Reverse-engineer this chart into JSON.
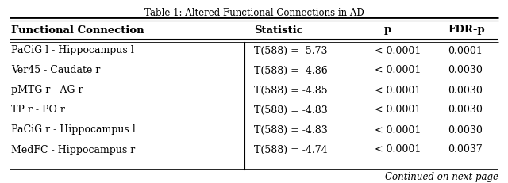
{
  "title": "Table 1: Altered Functional Connections in AD",
  "headers": [
    "Functional Connection",
    "Statistic",
    "p",
    "FDR-p"
  ],
  "rows": [
    [
      "PaCiG l - Hippocampus l",
      "T(588) = -5.73",
      "< 0.0001",
      "0.0001"
    ],
    [
      "Ver45 - Caudate r",
      "T(588) = -4.86",
      "< 0.0001",
      "0.0030"
    ],
    [
      "pMTG r - AG r",
      "T(588) = -4.85",
      "< 0.0001",
      "0.0030"
    ],
    [
      "TP r - PO r",
      "T(588) = -4.83",
      "< 0.0001",
      "0.0030"
    ],
    [
      "PaCiG r - Hippocampus l",
      "T(588) = -4.83",
      "< 0.0001",
      "0.0030"
    ],
    [
      "MedFC - Hippocampus r",
      "T(588) = -4.74",
      "< 0.0001",
      "0.0037"
    ]
  ],
  "footer": "Continued on next page",
  "bg_color": "#ffffff",
  "text_color": "#000000",
  "title_fontsize": 8.5,
  "header_fontsize": 9.5,
  "row_fontsize": 9,
  "footer_fontsize": 8.5
}
